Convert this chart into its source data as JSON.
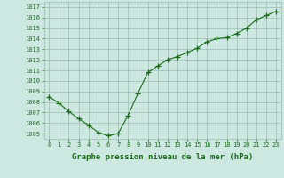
{
  "x": [
    0,
    1,
    2,
    3,
    4,
    5,
    6,
    7,
    8,
    9,
    10,
    11,
    12,
    13,
    14,
    15,
    16,
    17,
    18,
    19,
    20,
    21,
    22,
    23
  ],
  "y": [
    1008.5,
    1007.9,
    1007.1,
    1006.4,
    1005.8,
    1005.1,
    1004.8,
    1005.0,
    1006.7,
    1008.8,
    1010.8,
    1011.4,
    1012.0,
    1012.3,
    1012.7,
    1013.1,
    1013.7,
    1014.0,
    1014.1,
    1014.5,
    1015.0,
    1015.8,
    1016.2,
    1016.6
  ],
  "line_color": "#1a6b1a",
  "marker": "+",
  "marker_size": 4,
  "marker_color": "#1a6b1a",
  "bg_color": "#cce8e0",
  "grid_color": "#9abcb4",
  "xlabel": "Graphe pression niveau de la mer (hPa)",
  "xlabel_color": "#1a6b1a",
  "tick_color": "#1a6b1a",
  "ylim": [
    1004.5,
    1017.5
  ],
  "yticks": [
    1005,
    1006,
    1007,
    1008,
    1009,
    1010,
    1011,
    1012,
    1013,
    1014,
    1015,
    1016,
    1017
  ],
  "xlim": [
    -0.5,
    23.5
  ],
  "xticks": [
    0,
    1,
    2,
    3,
    4,
    5,
    6,
    7,
    8,
    9,
    10,
    11,
    12,
    13,
    14,
    15,
    16,
    17,
    18,
    19,
    20,
    21,
    22,
    23
  ],
  "tick_fontsize": 5.0,
  "xlabel_fontsize": 6.5
}
